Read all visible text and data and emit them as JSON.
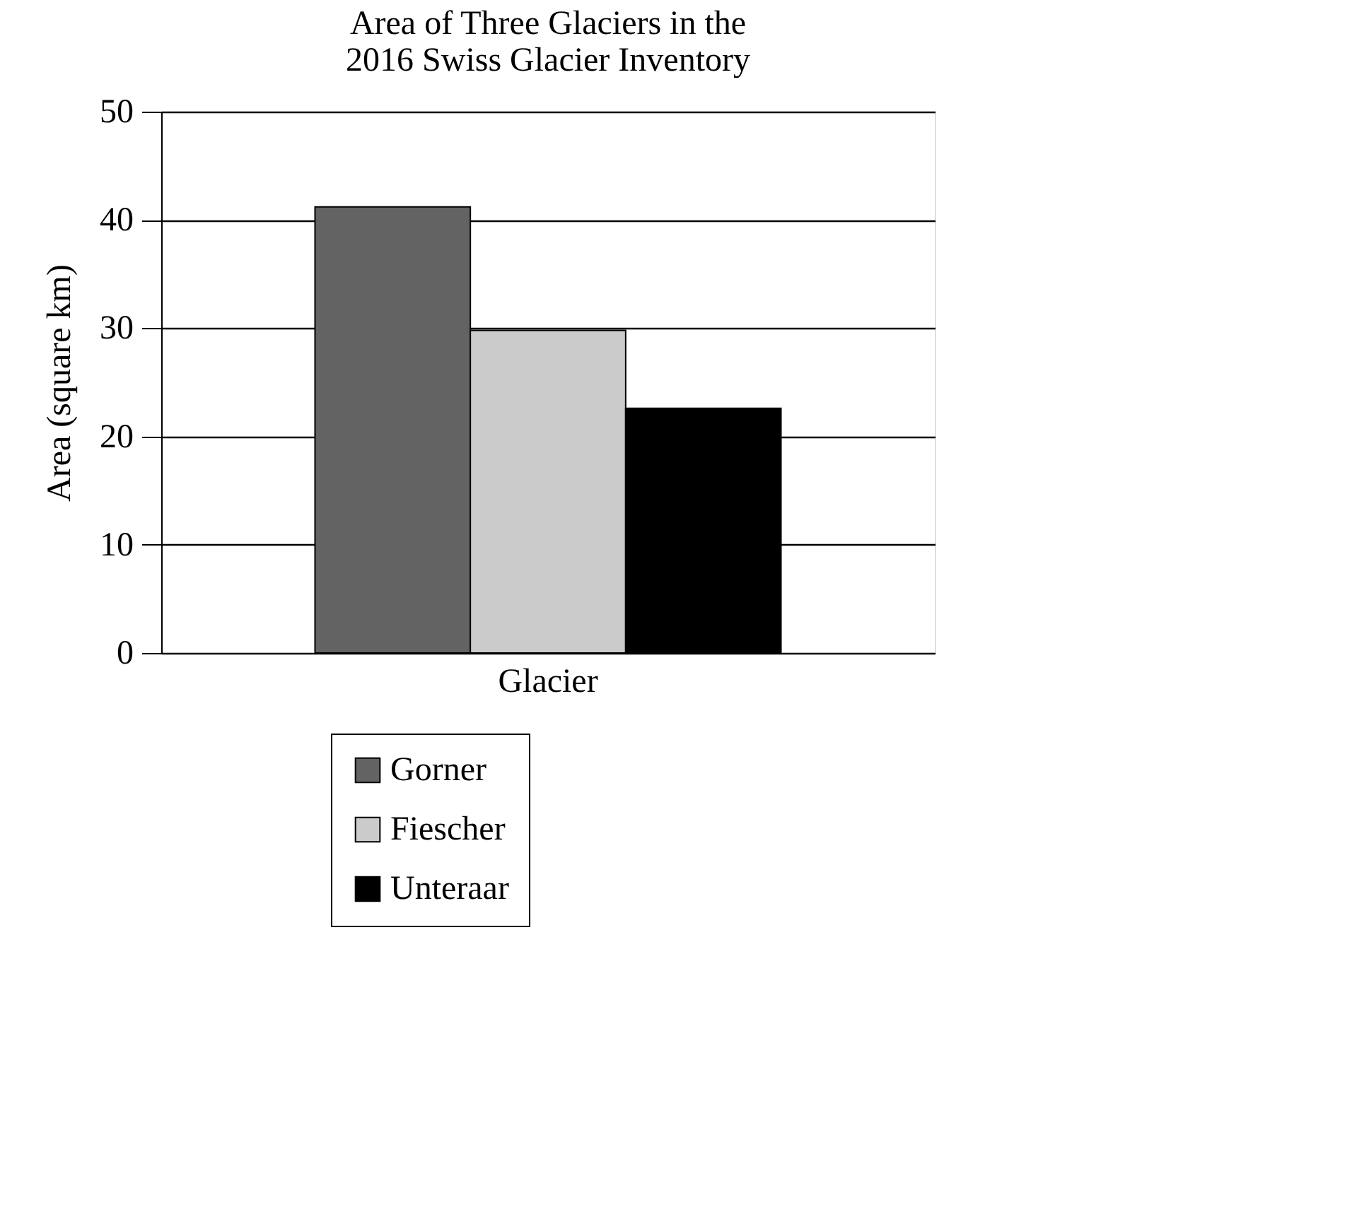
{
  "chart_data": {
    "type": "bar",
    "title": [
      "Area of Three Glaciers in the",
      "2016 Swiss Glacier Inventory"
    ],
    "ylabel": "Area (square km)",
    "categories": [
      "Glacier"
    ],
    "series": [
      {
        "name": "Gorner",
        "color": "#636363",
        "values": [
          41.2
        ]
      },
      {
        "name": "Fiescher",
        "color": "#cbcbcb",
        "values": [
          29.8
        ]
      },
      {
        "name": "Unteraar",
        "color": "#000000",
        "values": [
          22.6
        ]
      }
    ],
    "ylim": [
      0,
      50
    ],
    "yticks": [
      0,
      10,
      20,
      30,
      40,
      50
    ],
    "grid": "y",
    "legend": "bottom"
  }
}
